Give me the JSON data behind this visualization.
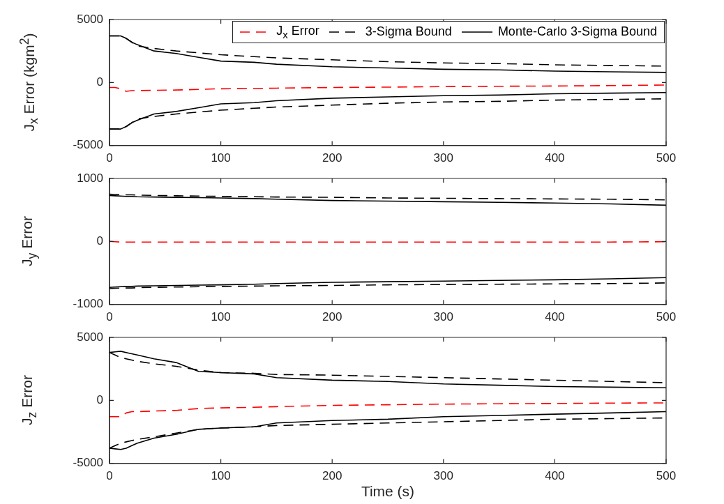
{
  "chart_data": [
    {
      "type": "line",
      "ylabel": "J$_{x}$ Error (kgm$^{2}$)",
      "x": [
        0,
        5,
        10,
        15,
        20,
        25,
        40,
        60,
        80,
        100,
        130,
        150,
        200,
        250,
        300,
        350,
        400,
        450,
        500
      ],
      "xlim": [
        0,
        500
      ],
      "xticks": [
        0,
        100,
        200,
        300,
        400,
        500
      ],
      "ylim": [
        -5000,
        5000
      ],
      "yticks": [
        -5000,
        0,
        5000
      ],
      "legend": "top right",
      "marker": "none",
      "grid": false,
      "series": [
        {
          "name": "J$_{x}$ Error",
          "color": "#ff0000",
          "line_style": "dashed",
          "values": [
            -400,
            -400,
            -500,
            -700,
            -650,
            -650,
            -620,
            -600,
            -550,
            -500,
            -480,
            -450,
            -400,
            -370,
            -330,
            -300,
            -280,
            -250,
            -200
          ]
        },
        {
          "name": "3-Sigma Bound",
          "color": "#000000",
          "line_style": "dashed",
          "values": [
            3700,
            3700,
            3700,
            3500,
            3200,
            2900,
            2700,
            2500,
            2350,
            2200,
            2050,
            1950,
            1800,
            1650,
            1550,
            1500,
            1400,
            1350,
            1300
          ]
        },
        {
          "name": "Monte-Carlo 3-Sigma Bound",
          "color": "#000000",
          "line_style": "solid",
          "values": [
            3700,
            3700,
            3700,
            3500,
            3200,
            3000,
            2500,
            2300,
            2000,
            1700,
            1600,
            1450,
            1250,
            1150,
            1050,
            1000,
            900,
            850,
            800
          ]
        },
        {
          "color": "#000000",
          "line_style": "dashed",
          "values": [
            -3700,
            -3700,
            -3700,
            -3500,
            -3200,
            -2900,
            -2700,
            -2500,
            -2350,
            -2200,
            -2050,
            -1950,
            -1800,
            -1650,
            -1550,
            -1500,
            -1400,
            -1350,
            -1300
          ]
        },
        {
          "color": "#000000",
          "line_style": "solid",
          "values": [
            -3700,
            -3700,
            -3700,
            -3500,
            -3200,
            -3000,
            -2500,
            -2300,
            -2000,
            -1700,
            -1600,
            -1450,
            -1250,
            -1150,
            -1050,
            -1000,
            -900,
            -850,
            -800
          ]
        }
      ]
    },
    {
      "type": "line",
      "ylabel": "J$_{y}$ Error",
      "x": [
        0,
        5,
        10,
        15,
        20,
        25,
        40,
        60,
        80,
        100,
        130,
        150,
        200,
        250,
        300,
        350,
        400,
        450,
        500
      ],
      "xlim": [
        0,
        500
      ],
      "xticks": [
        0,
        100,
        200,
        300,
        400,
        500
      ],
      "ylim": [
        -1000,
        1000
      ],
      "yticks": [
        -1000,
        0,
        1000
      ],
      "marker": "none",
      "grid": false,
      "series": [
        {
          "color": "#ff0000",
          "line_style": "dashed",
          "values": [
            0,
            -5,
            -10,
            -10,
            -10,
            -10,
            -10,
            -10,
            -10,
            -10,
            -10,
            -10,
            -10,
            -10,
            -10,
            -10,
            -10,
            -10,
            -5
          ]
        },
        {
          "color": "#000000",
          "line_style": "dashed",
          "values": [
            750,
            745,
            740,
            740,
            740,
            735,
            730,
            725,
            720,
            715,
            710,
            705,
            700,
            690,
            685,
            680,
            675,
            670,
            660
          ]
        },
        {
          "color": "#000000",
          "line_style": "solid",
          "values": [
            730,
            725,
            720,
            715,
            715,
            710,
            705,
            700,
            695,
            690,
            680,
            670,
            650,
            640,
            630,
            620,
            610,
            595,
            575
          ]
        },
        {
          "color": "#000000",
          "line_style": "dashed",
          "values": [
            -750,
            -745,
            -740,
            -740,
            -740,
            -735,
            -730,
            -725,
            -720,
            -715,
            -710,
            -705,
            -700,
            -690,
            -685,
            -680,
            -675,
            -670,
            -660
          ]
        },
        {
          "color": "#000000",
          "line_style": "solid",
          "values": [
            -730,
            -725,
            -720,
            -715,
            -715,
            -710,
            -705,
            -700,
            -695,
            -690,
            -680,
            -670,
            -650,
            -640,
            -630,
            -620,
            -610,
            -595,
            -575
          ]
        }
      ]
    },
    {
      "type": "line",
      "ylabel": "J$_{z}$ Error",
      "xlabel": "Time (s)",
      "x": [
        0,
        5,
        10,
        15,
        20,
        25,
        40,
        60,
        80,
        100,
        130,
        150,
        200,
        250,
        300,
        350,
        400,
        450,
        500
      ],
      "xlim": [
        0,
        500
      ],
      "xticks": [
        0,
        100,
        200,
        300,
        400,
        500
      ],
      "ylim": [
        -5000,
        5000
      ],
      "yticks": [
        -5000,
        0,
        5000
      ],
      "marker": "none",
      "grid": false,
      "series": [
        {
          "color": "#ff0000",
          "line_style": "dashed",
          "values": [
            -1300,
            -1300,
            -1300,
            -1000,
            -900,
            -900,
            -850,
            -800,
            -650,
            -600,
            -550,
            -500,
            -400,
            -350,
            -300,
            -270,
            -250,
            -220,
            -200
          ]
        },
        {
          "color": "#000000",
          "line_style": "dashed",
          "values": [
            3800,
            3600,
            3400,
            3300,
            3200,
            3100,
            2900,
            2700,
            2400,
            2200,
            2150,
            2050,
            2000,
            1900,
            1800,
            1700,
            1600,
            1500,
            1400
          ]
        },
        {
          "color": "#000000",
          "line_style": "solid",
          "values": [
            3800,
            3850,
            3900,
            3800,
            3700,
            3600,
            3300,
            3000,
            2300,
            2200,
            2100,
            1800,
            1600,
            1500,
            1300,
            1200,
            1100,
            1050,
            1000
          ]
        },
        {
          "color": "#000000",
          "line_style": "dashed",
          "values": [
            -3800,
            -3600,
            -3400,
            -3300,
            -3200,
            -3100,
            -2900,
            -2600,
            -2300,
            -2200,
            -2100,
            -2000,
            -1900,
            -1800,
            -1700,
            -1600,
            -1500,
            -1450,
            -1400
          ]
        },
        {
          "color": "#000000",
          "line_style": "solid",
          "values": [
            -3800,
            -3850,
            -3900,
            -3800,
            -3600,
            -3400,
            -3000,
            -2700,
            -2300,
            -2200,
            -2100,
            -1800,
            -1600,
            -1500,
            -1300,
            -1200,
            -1100,
            -1000,
            -900
          ]
        }
      ]
    }
  ]
}
